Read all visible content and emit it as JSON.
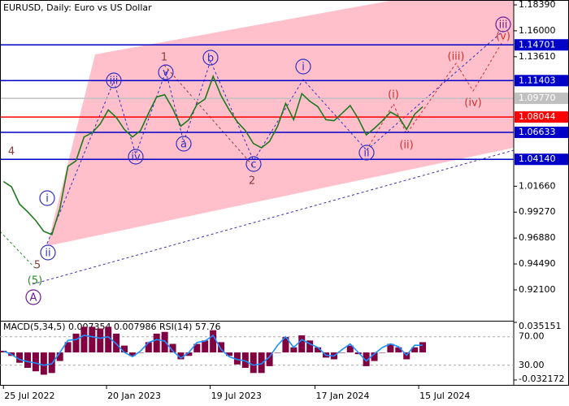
{
  "chart_data": {
    "type": "line",
    "title": "EURUSD, Daily:  Euro vs US Dollar",
    "x": [
      "2022-07-25",
      "2022-08-08",
      "2022-08-22",
      "2022-09-05",
      "2022-09-19",
      "2022-10-03",
      "2022-10-17",
      "2022-10-31",
      "2022-11-14",
      "2022-11-28",
      "2022-12-12",
      "2022-12-26",
      "2023-01-09",
      "2023-01-23",
      "2023-02-06",
      "2023-02-20",
      "2023-03-06",
      "2023-03-20",
      "2023-04-03",
      "2023-04-17",
      "2023-05-01",
      "2023-05-15",
      "2023-05-29",
      "2023-06-12",
      "2023-06-26",
      "2023-07-10",
      "2023-07-24",
      "2023-08-07",
      "2023-08-21",
      "2023-09-04",
      "2023-09-18",
      "2023-10-02",
      "2023-10-16",
      "2023-10-30",
      "2023-11-13",
      "2023-11-27",
      "2023-12-11",
      "2023-12-25",
      "2024-01-08",
      "2024-01-22",
      "2024-02-05",
      "2024-02-19",
      "2024-03-04",
      "2024-03-18",
      "2024-04-01",
      "2024-04-15",
      "2024-04-29",
      "2024-05-13",
      "2024-05-27",
      "2024-06-10",
      "2024-06-24",
      "2024-07-08",
      "2024-07-22"
    ],
    "values": [
      1.021,
      1.016,
      1.0,
      0.993,
      0.985,
      0.975,
      0.972,
      0.996,
      1.035,
      1.04,
      1.062,
      1.066,
      1.074,
      1.087,
      1.08,
      1.069,
      1.062,
      1.068,
      1.084,
      1.099,
      1.101,
      1.088,
      1.072,
      1.078,
      1.092,
      1.097,
      1.118,
      1.1,
      1.087,
      1.076,
      1.068,
      1.056,
      1.052,
      1.058,
      1.072,
      1.093,
      1.078,
      1.102,
      1.095,
      1.09,
      1.078,
      1.077,
      1.084,
      1.091,
      1.079,
      1.064,
      1.07,
      1.077,
      1.085,
      1.081,
      1.069,
      1.083,
      1.09
    ],
    "color": "#1f7a1f",
    "xlim": [
      "2022-07-19",
      "2024-12-27"
    ],
    "xticks": [
      {
        "value": "2022-07-25",
        "label": "25 Jul 2022"
      },
      {
        "value": "2023-01-20",
        "label": "20 Jan 2023"
      },
      {
        "value": "2023-07-19",
        "label": "19 Jul 2023"
      },
      {
        "value": "2024-01-17",
        "label": "17 Jan 2024"
      },
      {
        "value": "2024-07-15",
        "label": "15 Jul 2024"
      }
    ],
    "ylim": [
      0.8925,
      1.1884
    ],
    "yticks": [
      {
        "value": 1.1839,
        "label": "1.18390"
      },
      {
        "value": 1.16,
        "label": "1.16000"
      },
      {
        "value": 1.1361,
        "label": "1.13610"
      },
      {
        "value": 1.0166,
        "label": "1.01660"
      },
      {
        "value": 0.9927,
        "label": "0.99270"
      },
      {
        "value": 0.9688,
        "label": "0.96880"
      },
      {
        "value": 0.9449,
        "label": "0.94490"
      },
      {
        "value": 0.921,
        "label": "0.92100"
      }
    ],
    "levels": [
      {
        "value": 1.0977,
        "label": "1.09770",
        "color": "#c0c0c0"
      },
      {
        "value": 1.14701,
        "color": "#0000c8"
      },
      {
        "value": 1.11403,
        "color": "#0000c8"
      },
      {
        "value": 1.06633,
        "color": "#0000c8"
      },
      {
        "value": 1.0414,
        "label": "1.04140",
        "color": "#0000c8"
      },
      {
        "value": 1.08044,
        "color": "#ff0000"
      }
    ],
    "annotations": [
      "4",
      "5",
      "(5)",
      "A",
      "i",
      "ii",
      "iii",
      "iv",
      "v",
      "a",
      "b",
      "c",
      "1",
      "2",
      "i",
      "ii",
      "(i)",
      "(ii)",
      "(iii)",
      "(iv)",
      "(v)",
      "iii"
    ],
    "indicator": {
      "title": "MACD(5,34,5) 0.007354 0.007986 RSI(14) 57.76",
      "macd": {
        "values": [
          0.002,
          -0.004,
          -0.012,
          -0.018,
          -0.022,
          -0.026,
          -0.024,
          -0.01,
          0.012,
          0.022,
          0.03,
          0.03,
          0.028,
          0.03,
          0.022,
          0.008,
          -0.004,
          0.0,
          0.012,
          0.022,
          0.024,
          0.01,
          -0.008,
          -0.004,
          0.01,
          0.014,
          0.026,
          0.012,
          -0.004,
          -0.014,
          -0.018,
          -0.024,
          -0.024,
          -0.016,
          0.0,
          0.018,
          0.006,
          0.02,
          0.014,
          0.006,
          -0.006,
          -0.008,
          0.0,
          0.008,
          -0.002,
          -0.016,
          -0.01,
          0.0,
          0.01,
          0.006,
          -0.008,
          0.006,
          0.012
        ],
        "color": "#800040",
        "ylim": [
          -0.0341,
          0.0361
        ],
        "yticks": [
          0.035151,
          -0.032172
        ]
      },
      "rsi": {
        "values": [
          50,
          45,
          38,
          35,
          33,
          30,
          32,
          48,
          65,
          66,
          72,
          70,
          68,
          70,
          60,
          48,
          42,
          50,
          62,
          66,
          64,
          50,
          40,
          48,
          62,
          64,
          72,
          52,
          42,
          38,
          36,
          30,
          32,
          42,
          58,
          70,
          55,
          66,
          60,
          55,
          44,
          43,
          52,
          60,
          48,
          36,
          46,
          55,
          60,
          56,
          44,
          58,
          58
        ],
        "color": "#1e90ff",
        "ylim": [
          6.9,
          91.4
        ],
        "yticks": [
          {
            "value": 70,
            "label": "70.00"
          },
          {
            "value": 30,
            "label": "30.00"
          }
        ]
      }
    }
  }
}
